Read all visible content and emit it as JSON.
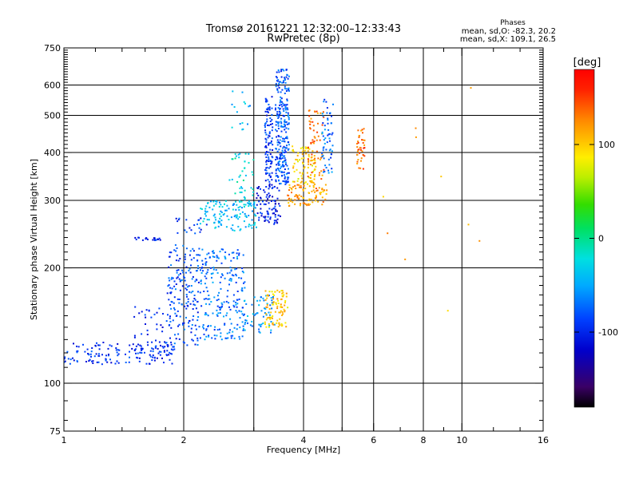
{
  "chart_data": {
    "type": "scatter",
    "title": "Tromsø 20161221 12:32:00–12:33:43",
    "subtitle": "RwPretec (8p)",
    "xlabel": "Frequency [MHz]",
    "ylabel": "Stationary phase Virtual Height [km]",
    "x_scale": "log",
    "y_scale": "log",
    "xlim": [
      1,
      16
    ],
    "ylim": [
      75,
      750
    ],
    "grid": true,
    "x_ticks": [
      1,
      2,
      4,
      6,
      8,
      10,
      16
    ],
    "x_tick_labels": [
      "1",
      "2",
      "4",
      "6",
      "8",
      "10",
      "16"
    ],
    "x_minor_ticks": [
      1.2,
      1.4,
      1.6,
      1.8,
      3,
      5,
      7,
      9,
      12,
      14
    ],
    "x_grid": [
      2,
      3,
      4,
      5,
      6,
      8,
      10
    ],
    "y_ticks": [
      75,
      100,
      200,
      300,
      400,
      500,
      600,
      750
    ],
    "y_tick_labels": [
      "75",
      "100",
      "200",
      "300",
      "400",
      "500",
      "600",
      "750"
    ],
    "y_grid": [
      100,
      200,
      300,
      400,
      500,
      600
    ],
    "stats": {
      "header": "Phases",
      "line_o": "mean, sd,O: -82.3, 20.2",
      "line_x": "mean, sd,X: 109.1, 26.5"
    },
    "colorbar": {
      "label": "[deg]",
      "range": [
        -180,
        180
      ],
      "ticks": [
        100,
        0,
        -100
      ],
      "tick_labels": [
        "100",
        "0",
        "-100"
      ]
    },
    "series": [
      {
        "clusters": [
          {
            "x_range": [
              1.0,
              1.9
            ],
            "y_range": [
              112,
              128
            ],
            "phase": -95,
            "n": 150
          },
          {
            "x_range": [
              1.5,
              1.85
            ],
            "y_range": [
              120,
              160
            ],
            "phase": -95,
            "n": 40
          },
          {
            "x_range": [
              1.82,
              2.2
            ],
            "y_range": [
              125,
              230
            ],
            "phase": -85,
            "n": 180
          },
          {
            "x_range": [
              2.2,
              2.85
            ],
            "y_range": [
              130,
              225
            ],
            "phase": -70,
            "n": 220
          },
          {
            "x_range": [
              2.8,
              3.4
            ],
            "y_range": [
              135,
              170
            ],
            "phase": -55,
            "n": 60
          },
          {
            "x_range": [
              3.2,
              3.65
            ],
            "y_range": [
              140,
              175
            ],
            "phase": 100,
            "n": 90
          },
          {
            "x_range": [
              1.5,
              1.75
            ],
            "y_range": [
              236,
              240
            ],
            "phase": -100,
            "n": 20
          },
          {
            "x_range": [
              1.9,
              2.3
            ],
            "y_range": [
              245,
              270
            ],
            "phase": -95,
            "n": 20
          },
          {
            "x_range": [
              2.2,
              3.05
            ],
            "y_range": [
              250,
              300
            ],
            "phase": -40,
            "n": 130
          },
          {
            "x_range": [
              2.6,
              3.0
            ],
            "y_range": [
              300,
              400
            ],
            "phase": -20,
            "n": 40
          },
          {
            "x_range": [
              3.05,
              3.5
            ],
            "y_range": [
              260,
              330
            ],
            "phase": -105,
            "n": 90
          },
          {
            "x_range": [
              3.2,
              3.35
            ],
            "y_range": [
              330,
              560
            ],
            "phase": -95,
            "n": 100
          },
          {
            "x_range": [
              3.4,
              3.68
            ],
            "y_range": [
              330,
              660
            ],
            "phase": -80,
            "n": 260
          },
          {
            "x_range": [
              3.65,
              4.6
            ],
            "y_range": [
              290,
              330
            ],
            "phase": 120,
            "n": 90
          },
          {
            "x_range": [
              3.75,
              4.3
            ],
            "y_range": [
              330,
              420
            ],
            "phase": 95,
            "n": 80
          },
          {
            "x_range": [
              4.1,
              4.5
            ],
            "y_range": [
              340,
              520
            ],
            "phase": 130,
            "n": 60
          },
          {
            "x_range": [
              4.45,
              4.75
            ],
            "y_range": [
              350,
              560
            ],
            "phase": -75,
            "n": 60
          },
          {
            "x_range": [
              5.45,
              5.7
            ],
            "y_range": [
              360,
              470
            ],
            "phase": 135,
            "n": 40
          },
          {
            "x_range": [
              2.6,
              2.95
            ],
            "y_range": [
              450,
              590
            ],
            "phase": -45,
            "n": 15
          },
          {
            "x_range": [
              6.2,
              11.5
            ],
            "y_range": [
              100,
              660
            ],
            "phase": 110,
            "n": 10
          }
        ]
      }
    ]
  }
}
